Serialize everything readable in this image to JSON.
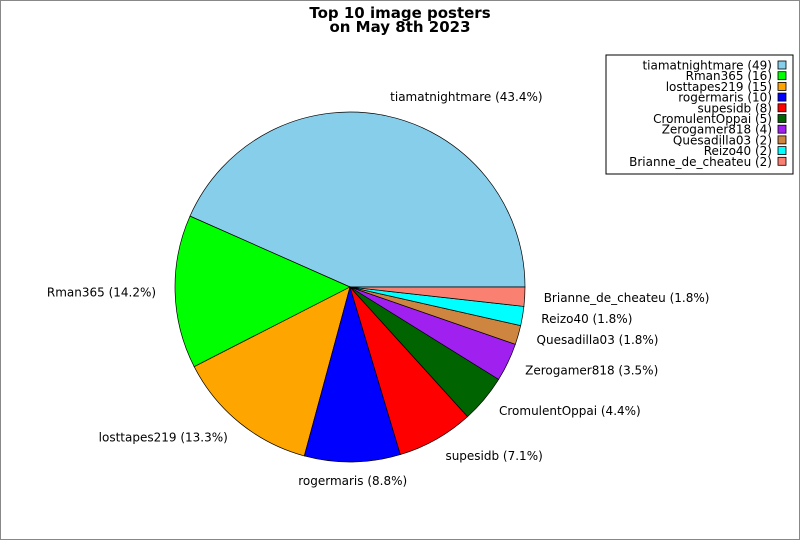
{
  "chart_data": {
    "type": "pie",
    "title_lines": [
      "Top 10 image posters",
      "on May 8th 2023"
    ],
    "start_angle_deg": 0,
    "direction": "counterclockwise",
    "legend_placement": "top-right",
    "slices": [
      {
        "name": "tiamatnightmare",
        "value": 49,
        "percent_label": "tiamatnightmare (43.4%)",
        "legend_label": "tiamatnightmare (49)",
        "color": "#87ceeb"
      },
      {
        "name": "Rman365",
        "value": 16,
        "percent_label": "Rman365 (14.2%)",
        "legend_label": "Rman365 (16)",
        "color": "#00ff00"
      },
      {
        "name": "losttapes219",
        "value": 15,
        "percent_label": "losttapes219 (13.3%)",
        "legend_label": "losttapes219 (15)",
        "color": "#ffa500"
      },
      {
        "name": "rogermaris",
        "value": 10,
        "percent_label": "rogermaris (8.8%)",
        "legend_label": "rogermaris (10)",
        "color": "#0000ff"
      },
      {
        "name": "supesidb",
        "value": 8,
        "percent_label": "supesidb (7.1%)",
        "legend_label": "supesidb (8)",
        "color": "#ff0000"
      },
      {
        "name": "CromulentOppai",
        "value": 5,
        "percent_label": "CromulentOppai (4.4%)",
        "legend_label": "CromulentOppai (5)",
        "color": "#006400"
      },
      {
        "name": "Zerogamer818",
        "value": 4,
        "percent_label": "Zerogamer818 (3.5%)",
        "legend_label": "Zerogamer818 (4)",
        "color": "#a020f0"
      },
      {
        "name": "Quesadilla03",
        "value": 2,
        "percent_label": "Quesadilla03 (1.8%)",
        "legend_label": "Quesadilla03 (2)",
        "color": "#cd853f"
      },
      {
        "name": "Reizo40",
        "value": 2,
        "percent_label": "Reizo40 (1.8%)",
        "legend_label": "Reizo40 (2)",
        "color": "#00ffff"
      },
      {
        "name": "Brianne_de_cheateu",
        "value": 2,
        "percent_label": "Brianne_de_cheateu (1.8%)",
        "legend_label": "Brianne_de_cheateu (2)",
        "color": "#fa8072"
      }
    ]
  }
}
